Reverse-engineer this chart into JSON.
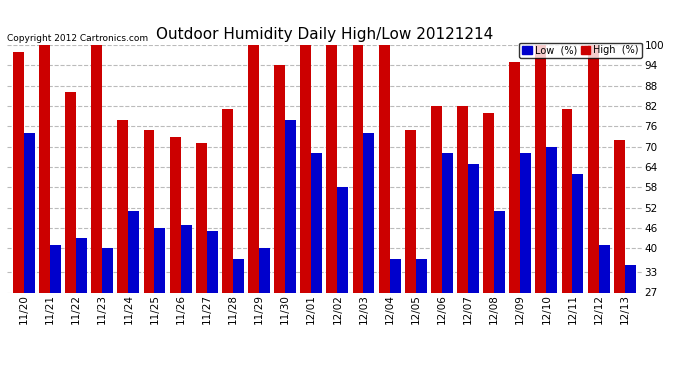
{
  "title": "Outdoor Humidity Daily High/Low 20121214",
  "copyright": "Copyright 2012 Cartronics.com",
  "legend_low": "Low  (%)",
  "legend_high": "High  (%)",
  "dates": [
    "11/20",
    "11/21",
    "11/22",
    "11/23",
    "11/24",
    "11/25",
    "11/26",
    "11/27",
    "11/28",
    "11/29",
    "11/30",
    "12/01",
    "12/02",
    "12/03",
    "12/04",
    "12/05",
    "12/06",
    "12/07",
    "12/08",
    "12/09",
    "12/10",
    "12/11",
    "12/12",
    "12/13"
  ],
  "high": [
    98,
    100,
    86,
    100,
    78,
    75,
    73,
    71,
    81,
    100,
    94,
    100,
    100,
    100,
    100,
    75,
    82,
    82,
    80,
    95,
    100,
    81,
    100,
    72
  ],
  "low": [
    74,
    41,
    43,
    40,
    51,
    46,
    47,
    45,
    37,
    40,
    78,
    68,
    58,
    74,
    37,
    37,
    68,
    65,
    51,
    68,
    70,
    62,
    41,
    35
  ],
  "ylim_min": 27,
  "ylim_max": 100,
  "yticks": [
    27,
    33,
    40,
    46,
    52,
    58,
    64,
    70,
    76,
    82,
    88,
    94,
    100
  ],
  "bar_width": 0.42,
  "color_low": "#0000cc",
  "color_high": "#cc0000",
  "bg_color": "#ffffff",
  "grid_color": "#bbbbbb",
  "title_fontsize": 11,
  "copyright_fontsize": 6.5,
  "tick_fontsize": 7.5,
  "legend_fontsize": 7
}
